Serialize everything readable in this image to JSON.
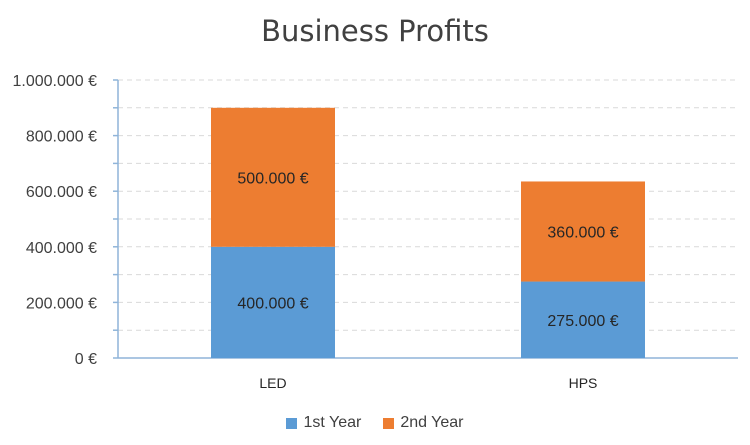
{
  "chart_data": {
    "type": "bar",
    "stacked": true,
    "title": "Business Profits",
    "xlabel": "",
    "ylabel": "",
    "categories": [
      "LED",
      "HPS"
    ],
    "series": [
      {
        "name": "1st Year",
        "values": [
          400000,
          275000
        ],
        "color": "#5B9BD5",
        "labels": [
          "400.000 €",
          "275.000 €"
        ]
      },
      {
        "name": "2nd Year",
        "values": [
          500000,
          360000
        ],
        "color": "#ED7D31",
        "labels": [
          "500.000 €",
          "360.000 €"
        ]
      }
    ],
    "ylim": [
      0,
      1000000
    ],
    "y_ticks": [
      0,
      200000,
      400000,
      600000,
      800000,
      1000000
    ],
    "y_tick_labels": [
      "0 €",
      "200.000 €",
      "400.000 €",
      "600.000 €",
      "800.000 €",
      "1.000.000 €"
    ],
    "grid": true,
    "legend_position": "bottom"
  }
}
